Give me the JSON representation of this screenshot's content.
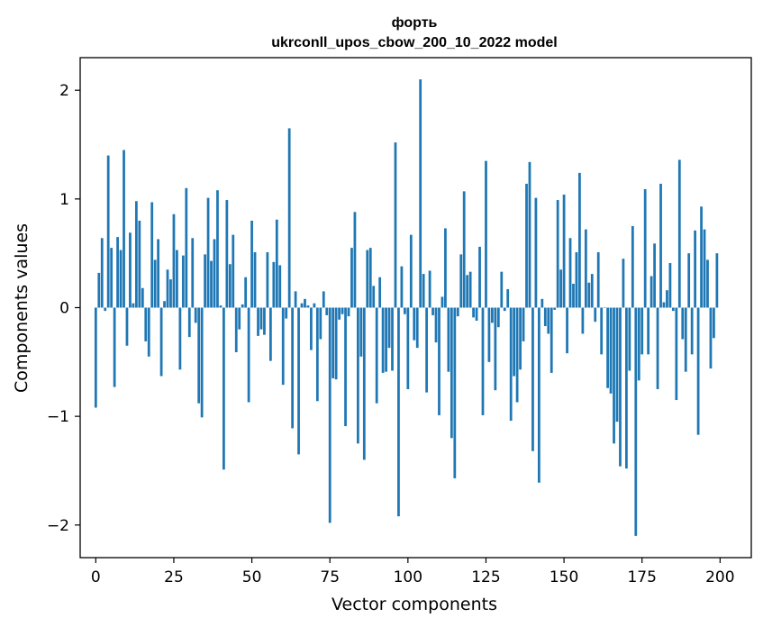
{
  "chart_data": {
    "type": "bar",
    "title_line1": "форть",
    "title_line2": "ukrconll_upos_cbow_200_10_2022 model",
    "xlabel": "Vector components",
    "ylabel": "Components values",
    "xlim": [
      -5,
      210
    ],
    "ylim": [
      -2.3,
      2.3
    ],
    "xticks": [
      0,
      25,
      50,
      75,
      100,
      125,
      150,
      175,
      200
    ],
    "xtick_labels": [
      "0",
      "25",
      "50",
      "75",
      "100",
      "125",
      "150",
      "175",
      "200"
    ],
    "yticks": [
      -2,
      -1,
      0,
      1,
      2
    ],
    "ytick_labels": [
      "−2",
      "−1",
      "0",
      "1",
      "2"
    ],
    "grid": false,
    "bar_color": "#1f77b4",
    "values": [
      -0.92,
      0.32,
      0.64,
      -0.03,
      1.4,
      0.55,
      -0.73,
      0.65,
      0.53,
      1.45,
      -0.35,
      0.69,
      0.04,
      0.98,
      0.8,
      0.18,
      -0.31,
      -0.45,
      0.97,
      0.44,
      0.63,
      -0.63,
      0.06,
      0.35,
      0.26,
      0.86,
      0.53,
      -0.57,
      0.48,
      1.1,
      -0.27,
      0.64,
      -0.14,
      -0.88,
      -1.01,
      0.49,
      1.01,
      0.43,
      0.63,
      1.08,
      0.02,
      -1.49,
      0.99,
      0.4,
      0.67,
      -0.41,
      -0.2,
      0.03,
      0.28,
      -0.87,
      0.8,
      0.51,
      -0.26,
      -0.2,
      -0.25,
      0.51,
      -0.49,
      0.42,
      0.81,
      0.39,
      -0.71,
      -0.1,
      1.65,
      -1.11,
      0.15,
      -1.35,
      0.04,
      0.08,
      0.02,
      -0.39,
      0.04,
      -0.86,
      -0.29,
      0.15,
      -0.07,
      -1.98,
      -0.65,
      -0.66,
      -0.11,
      -0.06,
      -1.09,
      -0.08,
      0.55,
      0.88,
      -1.25,
      -0.45,
      -1.4,
      0.53,
      0.55,
      0.2,
      -0.88,
      0.28,
      -0.6,
      -0.59,
      -0.37,
      -0.58,
      1.52,
      -1.92,
      0.38,
      -0.06,
      -0.75,
      0.67,
      -0.3,
      -0.37,
      2.1,
      0.31,
      -0.78,
      0.34,
      -0.07,
      -0.32,
      -0.99,
      0.1,
      0.73,
      -0.59,
      -1.2,
      -1.57,
      -0.08,
      0.49,
      1.07,
      0.3,
      0.33,
      -0.09,
      -0.12,
      0.56,
      -0.99,
      1.35,
      -0.5,
      -0.14,
      -0.76,
      -0.18,
      0.33,
      -0.03,
      0.17,
      -1.04,
      -0.63,
      -0.87,
      -0.57,
      -0.31,
      1.14,
      1.34,
      -1.32,
      1.01,
      -1.61,
      0.08,
      -0.17,
      -0.24,
      -0.6,
      -0.02,
      0.99,
      0.35,
      1.04,
      -0.42,
      0.64,
      0.22,
      0.51,
      1.24,
      -0.24,
      0.72,
      0.23,
      0.31,
      -0.13,
      0.51,
      -0.43,
      0.0,
      -0.74,
      -0.79,
      -1.25,
      -1.05,
      -1.46,
      0.45,
      -1.48,
      -0.58,
      0.75,
      -2.1,
      -0.67,
      -0.43,
      1.09,
      -0.43,
      0.29,
      0.59,
      -0.75,
      1.14,
      0.05,
      0.16,
      0.41,
      -0.03,
      -0.85,
      1.36,
      -0.29,
      -0.59,
      0.5,
      -0.43,
      0.71,
      -1.17,
      0.93,
      0.72,
      0.44,
      -0.56,
      -0.28,
      0.5
    ]
  }
}
